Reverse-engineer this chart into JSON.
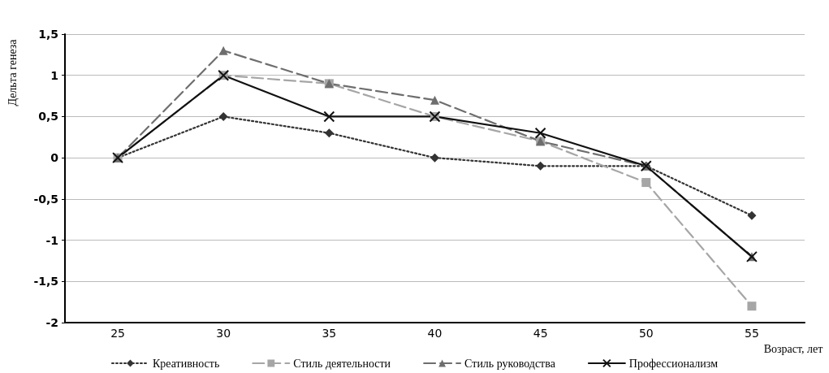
{
  "chart_data": {
    "type": "line",
    "ylabel": "Дельта генеза",
    "xlabel": "Возраст, лет",
    "categories": [
      "25",
      "30",
      "35",
      "40",
      "45",
      "50",
      "55"
    ],
    "series": [
      {
        "name": "Креативность",
        "color": "#333333",
        "marker": "diamond",
        "line_style": "dotted",
        "values": [
          0,
          0.5,
          0.3,
          0,
          -0.1,
          -0.1,
          -0.7
        ]
      },
      {
        "name": "Стиль деятельности",
        "color": "#a6a6a6",
        "marker": "square",
        "line_style": "dashed",
        "values": [
          0,
          1,
          0.9,
          0.5,
          0.2,
          -0.3,
          -1.8
        ]
      },
      {
        "name": "Стиль руководства",
        "color": "#6e6e6e",
        "marker": "triangle",
        "line_style": "dashed",
        "values": [
          0,
          1.3,
          0.9,
          0.7,
          0.2,
          -0.1,
          -1.2
        ]
      },
      {
        "name": "Профессионализм",
        "color": "#111111",
        "marker": "cross",
        "line_style": "solid",
        "values": [
          0,
          1,
          0.5,
          0.5,
          0.3,
          -0.1,
          -1.2
        ]
      }
    ],
    "ylim": [
      -2,
      1.5
    ],
    "yticks": [
      -2,
      {
        "value": -1.5,
        "label": "-1,5"
      },
      -1,
      {
        "value": -0.5,
        "label": "-0,5"
      },
      0,
      {
        "value": 0.5,
        "label": "0,5"
      },
      1,
      {
        "value": 1.5,
        "label": "1,5"
      }
    ],
    "grid": "y",
    "legend": "bottom"
  }
}
